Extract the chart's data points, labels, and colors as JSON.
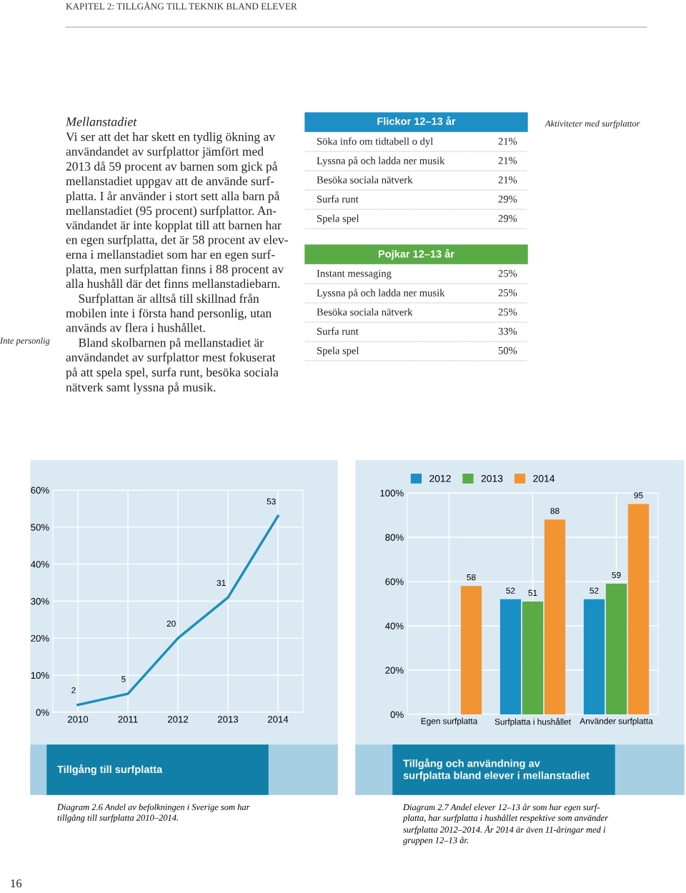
{
  "chart_data": [
    {
      "type": "other",
      "title": "KAPITEL 2: TILLGÅNG TILL TEKNIK BLAND ELEVER",
      "annotations": [
        "Mellanstadiet",
        "Vi ser att det har skett en tydlig ökning av\nanvändandet av surfplattor jämfört med\n2013 då 59 procent av barnen som gick på\nmellanstadiet uppgav att de använde surf-\nplatta. I år använder i stort sett alla barn på\nmellanstadiet (95 procent) surfplattor. An-\nvändandet är inte kopplat till att barnen har\nen egen surfplatta, det är 58 procent av elev-\nerna i mellanstadiet som har en egen surf-\nplatta, men surfplattan finns i 88 procent av\nalla hushåll där det finns mellanstadiebarn.\n    Surfplattan är alltså till skillnad från\nmobilen inte i första hand personlig, utan\nanvänds av flera i hushållet.\n    Bland skolbarnen på mellanstadiet är\nanvändandet av surfplattor mest fokuserat\npå att spela spel, surfa runt, besöka sociala\nnätverk samt lyssna på musik.",
        "Inte personlig",
        "Aktiviteter med surfplattor",
        "16"
      ]
    },
    {
      "type": "other",
      "title": "Flickor 12–13 år",
      "color": "#1d8fc4",
      "annotations": [
        "Söka info om tidtabell o dyl",
        "21%",
        "Lyssna på och ladda ner musik",
        "21%",
        "Besöka sociala nätverk",
        "21%",
        "Surfa runt",
        "29%",
        "Spela spel",
        "29%"
      ]
    },
    {
      "type": "other",
      "title": "Pojkar 12–13 år",
      "color": "#5aab46",
      "annotations": [
        "Instant messaging",
        "25%",
        "Lyssna på och ladda ner musik",
        "25%",
        "Besöka sociala nätverk",
        "25%",
        "Surfa runt",
        "33%",
        "Spela spel",
        "50%"
      ]
    },
    {
      "type": "line",
      "title": "Tillgång till surfplatta",
      "categories": [
        "2010",
        "2011",
        "2012",
        "2013",
        "2014"
      ],
      "series": [
        {
          "color": "#1a8fb8",
          "values": [
            2,
            5,
            20,
            31,
            53
          ]
        }
      ],
      "ylim": [
        0,
        60
      ],
      "yticks": [
        {
          "value": 0,
          "label": "0%"
        },
        {
          "value": 10,
          "label": "10%"
        },
        {
          "value": 20,
          "label": "20%"
        },
        {
          "value": 30,
          "label": "30%"
        },
        {
          "value": 40,
          "label": "40%"
        },
        {
          "value": 50,
          "label": "50%"
        },
        {
          "value": 60,
          "label": "60%"
        }
      ],
      "grid": true,
      "data_labels": true,
      "marker": "none",
      "line_style": "solid",
      "annotations": [
        "Diagram 2.6 Andel av befolkningen i Sverige som har\ntillgång till surfplatta 2010–2014."
      ]
    },
    {
      "type": "bar",
      "title": "Tillgång och användning av\nsurfplatta bland elever i mellanstadiet",
      "categories": [
        "Egen surfplatta",
        "Surfplatta i hushållet",
        "Använder surfplatta"
      ],
      "series": [
        {
          "name": "2012",
          "color": "#1a8fc4",
          "values": [
            null,
            52,
            52
          ]
        },
        {
          "name": "2013",
          "color": "#5aab46",
          "values": [
            null,
            51,
            59
          ]
        },
        {
          "name": "2014",
          "color": "#f39433",
          "values": [
            58,
            88,
            95
          ]
        }
      ],
      "ylim": [
        0,
        100
      ],
      "yticks": [
        {
          "value": 0,
          "label": "0%"
        },
        {
          "value": 20,
          "label": "20%"
        },
        {
          "value": 40,
          "label": "40%"
        },
        {
          "value": 60,
          "label": "60%"
        },
        {
          "value": 80,
          "label": "80%"
        },
        {
          "value": 100,
          "label": "100%"
        }
      ],
      "grid": true,
      "data_labels": true,
      "legend": "top",
      "annotations": [
        "Diagram 2.7 Andel elever 12–13 år som har egen surf-\nplatta, har surfplatta i hushållet respektive som använder\nsurfplatta 2012–2014. År 2014 är även 11-åringar med i\ngruppen 12–13 år."
      ]
    }
  ]
}
